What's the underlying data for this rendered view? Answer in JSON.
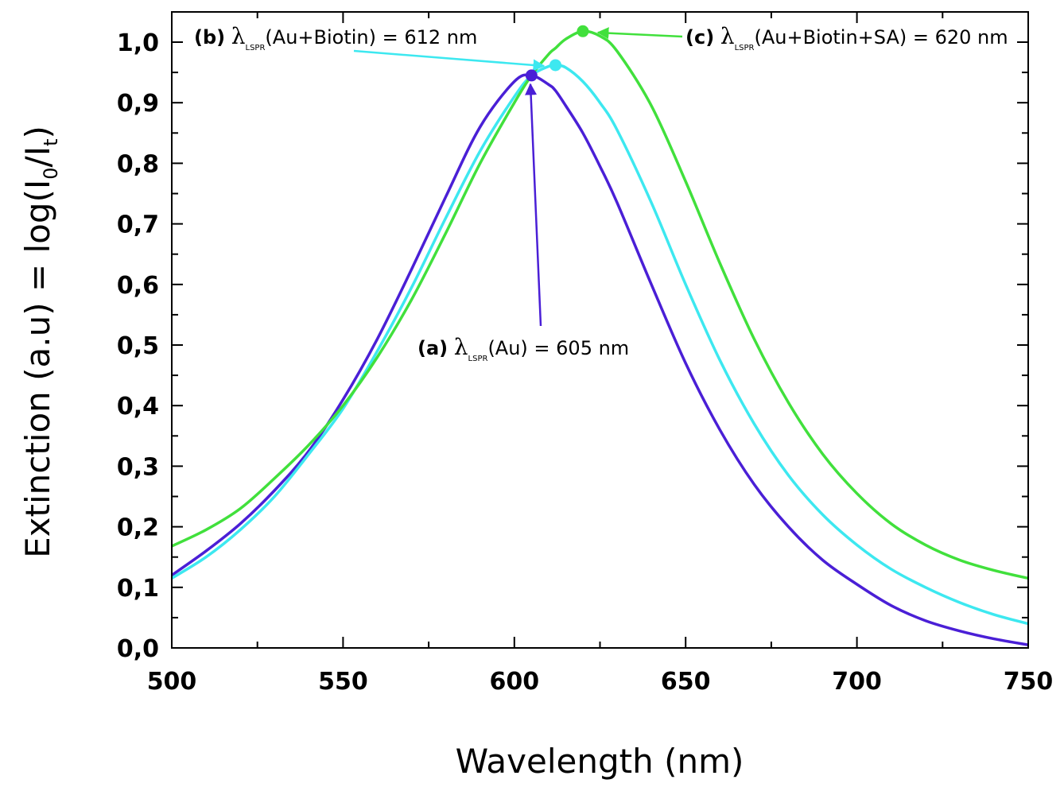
{
  "chart_data": {
    "type": "line",
    "title": "",
    "xlabel": "Wavelength (nm)",
    "ylabel": {
      "prefix": "Extinction (a.u) = log(I",
      "sub0": "0",
      "mid": "/I",
      "subt": "t",
      "suffix": ")"
    },
    "xlim": [
      500,
      750
    ],
    "ylim": [
      0,
      1.05
    ],
    "xticks": [
      500,
      550,
      600,
      650,
      700,
      750
    ],
    "xtick_labels": [
      "500",
      "550",
      "600",
      "650",
      "700",
      "750"
    ],
    "yticks": [
      0,
      0.1,
      0.2,
      0.3,
      0.4,
      0.5,
      0.6,
      0.7,
      0.8,
      0.9,
      1.0
    ],
    "ytick_labels": [
      "0,0",
      "0,1",
      "0,2",
      "0,3",
      "0,4",
      "0,5",
      "0,6",
      "0,7",
      "0,8",
      "0,9",
      "1,0"
    ],
    "x": [
      500,
      510,
      520,
      530,
      540,
      550,
      560,
      570,
      580,
      590,
      600,
      605,
      610,
      612,
      615,
      620,
      625,
      630,
      640,
      650,
      660,
      670,
      680,
      690,
      700,
      710,
      720,
      730,
      740,
      750
    ],
    "series": [
      {
        "name": "(a) Au",
        "color": "#4a1fd6",
        "peak": [
          605,
          0.945
        ],
        "values": [
          0.12,
          0.16,
          0.205,
          0.26,
          0.325,
          0.41,
          0.51,
          0.625,
          0.745,
          0.86,
          0.935,
          0.945,
          0.93,
          0.92,
          0.895,
          0.85,
          0.795,
          0.735,
          0.6,
          0.47,
          0.36,
          0.27,
          0.2,
          0.145,
          0.105,
          0.07,
          0.045,
          0.028,
          0.015,
          0.005
        ]
      },
      {
        "name": "(b) Au+Biotin",
        "color": "#3de8f0",
        "peak": [
          612,
          0.962
        ],
        "values": [
          0.115,
          0.15,
          0.195,
          0.25,
          0.32,
          0.395,
          0.49,
          0.595,
          0.71,
          0.82,
          0.91,
          0.945,
          0.96,
          0.962,
          0.958,
          0.935,
          0.9,
          0.855,
          0.735,
          0.6,
          0.475,
          0.37,
          0.285,
          0.22,
          0.17,
          0.13,
          0.1,
          0.075,
          0.055,
          0.04
        ]
      },
      {
        "name": "(c) Au+Biotin+SA",
        "color": "#41e03c",
        "peak": [
          620,
          1.018
        ],
        "values": [
          0.168,
          0.195,
          0.23,
          0.28,
          0.335,
          0.4,
          0.48,
          0.575,
          0.685,
          0.8,
          0.9,
          0.945,
          0.98,
          0.99,
          1.005,
          1.018,
          1.01,
          0.985,
          0.895,
          0.77,
          0.635,
          0.51,
          0.405,
          0.32,
          0.255,
          0.205,
          0.17,
          0.145,
          0.128,
          0.115
        ]
      }
    ],
    "annotations": [
      {
        "series": 0,
        "tag": "(a)",
        "lambda": "λ",
        "sub": "LSPR",
        "rest": "(Au) = 605 nm"
      },
      {
        "series": 1,
        "tag": "(b)",
        "lambda": "λ",
        "sub": "LSPR",
        "rest": "(Au+Biotin) = 612 nm"
      },
      {
        "series": 2,
        "tag": "(c)",
        "lambda": "λ",
        "sub": "LSPR",
        "rest": "(Au+Biotin+SA) = 620 nm"
      }
    ]
  }
}
